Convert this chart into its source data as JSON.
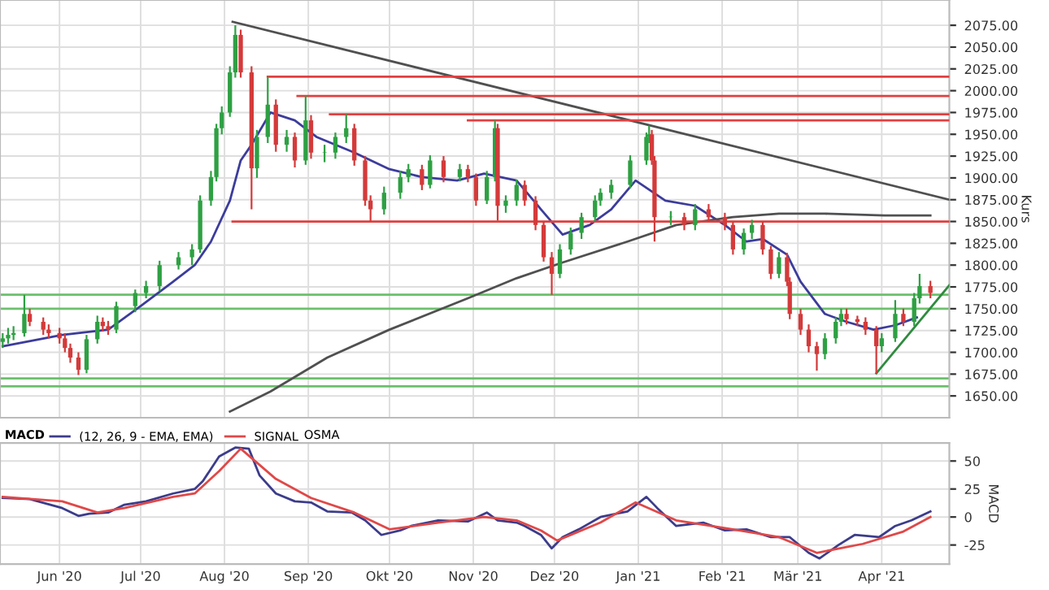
{
  "chart_data": [
    {
      "type": "candlestick",
      "ylabel": "Kurs",
      "grid": true,
      "legend": false,
      "tick_labels": "y",
      "xlim": [
        "2020-05-10",
        "2021-04-26"
      ],
      "ylim": [
        1625,
        2104
      ],
      "xticks": [
        {
          "value": "2020-06-01",
          "label": null
        },
        {
          "value": "2020-07-01",
          "label": null
        },
        {
          "value": "2020-08-01",
          "label": null
        },
        {
          "value": "2020-09-01",
          "label": null
        },
        {
          "value": "2020-10-01",
          "label": null
        },
        {
          "value": "2020-11-01",
          "label": null
        },
        {
          "value": "2020-12-01",
          "label": null
        },
        {
          "value": "2021-01-01",
          "label": null
        },
        {
          "value": "2021-02-01",
          "label": null
        },
        {
          "value": "2021-03-01",
          "label": null
        },
        {
          "value": "2021-04-01",
          "label": null
        }
      ],
      "yticks": [
        {
          "value": 1650,
          "label": "1650.00"
        },
        {
          "value": 1675,
          "label": "1675.00"
        },
        {
          "value": 1700,
          "label": "1700.00"
        },
        {
          "value": 1725,
          "label": "1725.00"
        },
        {
          "value": 1750,
          "label": "1750.00"
        },
        {
          "value": 1775,
          "label": "1775.00"
        },
        {
          "value": 1800,
          "label": "1800.00"
        },
        {
          "value": 1825,
          "label": "1825.00"
        },
        {
          "value": 1850,
          "label": "1850.00"
        },
        {
          "value": 1875,
          "label": "1875.00"
        },
        {
          "value": 1900,
          "label": "1900.00"
        },
        {
          "value": 1925,
          "label": "1925.00"
        },
        {
          "value": 1950,
          "label": "1950.00"
        },
        {
          "value": 1975,
          "label": "1975.00"
        },
        {
          "value": 2000,
          "label": "2000.00"
        },
        {
          "value": 2025,
          "label": "2025.00"
        },
        {
          "value": 2050,
          "label": "2050.00"
        },
        {
          "value": 2075,
          "label": "2075.00"
        }
      ],
      "x": [
        "2020-05-11",
        "2020-05-13",
        "2020-05-15",
        "2020-05-19",
        "2020-05-21",
        "2020-05-26",
        "2020-05-28",
        "2020-06-01",
        "2020-06-03",
        "2020-06-05",
        "2020-06-08",
        "2020-06-11",
        "2020-06-15",
        "2020-06-17",
        "2020-06-19",
        "2020-06-22",
        "2020-06-29",
        "2020-07-03",
        "2020-07-08",
        "2020-07-15",
        "2020-07-20",
        "2020-07-23",
        "2020-07-27",
        "2020-07-29",
        "2020-07-31",
        "2020-08-03",
        "2020-08-05",
        "2020-08-07",
        "2020-08-11",
        "2020-08-13",
        "2020-08-17",
        "2020-08-20",
        "2020-08-24",
        "2020-08-27",
        "2020-08-31",
        "2020-09-02",
        "2020-09-07",
        "2020-09-11",
        "2020-09-15",
        "2020-09-18",
        "2020-09-22",
        "2020-09-24",
        "2020-09-29",
        "2020-10-05",
        "2020-10-08",
        "2020-10-13",
        "2020-10-16",
        "2020-10-21",
        "2020-10-27",
        "2020-10-30",
        "2020-11-02",
        "2020-11-06",
        "2020-11-09",
        "2020-11-10",
        "2020-11-13",
        "2020-11-17",
        "2020-11-20",
        "2020-11-24",
        "2020-11-27",
        "2020-11-30",
        "2020-12-03",
        "2020-12-07",
        "2020-12-11",
        "2020-12-16",
        "2020-12-18",
        "2020-12-22",
        "2020-12-29",
        "2021-01-04",
        "2021-01-05",
        "2021-01-06",
        "2021-01-07",
        "2021-01-13",
        "2021-01-18",
        "2021-01-22",
        "2021-01-27",
        "2021-02-02",
        "2021-02-05",
        "2021-02-09",
        "2021-02-12",
        "2021-02-16",
        "2021-02-19",
        "2021-02-22",
        "2021-02-25",
        "2021-02-26",
        "2021-03-02",
        "2021-03-05",
        "2021-03-08",
        "2021-03-11",
        "2021-03-15",
        "2021-03-17",
        "2021-03-19",
        "2021-03-23",
        "2021-03-26",
        "2021-03-30",
        "2021-04-01",
        "2021-04-06",
        "2021-04-09",
        "2021-04-13",
        "2021-04-15",
        "2021-04-19"
      ],
      "ohlc": [
        [
          1712,
          1722,
          1705,
          1716
        ],
        [
          1716,
          1728,
          1710,
          1720
        ],
        [
          1720,
          1730,
          1714,
          1722
        ],
        [
          1722,
          1766,
          1718,
          1744
        ],
        [
          1744,
          1750,
          1730,
          1735
        ],
        [
          1735,
          1740,
          1720,
          1726
        ],
        [
          1726,
          1732,
          1716,
          1722
        ],
        [
          1722,
          1728,
          1710,
          1716
        ],
        [
          1716,
          1722,
          1700,
          1705
        ],
        [
          1705,
          1710,
          1688,
          1694
        ],
        [
          1694,
          1700,
          1674,
          1680
        ],
        [
          1680,
          1720,
          1676,
          1715
        ],
        [
          1715,
          1742,
          1710,
          1735
        ],
        [
          1735,
          1740,
          1724,
          1730
        ],
        [
          1730,
          1736,
          1720,
          1726
        ],
        [
          1726,
          1758,
          1722,
          1753
        ],
        [
          1753,
          1772,
          1746,
          1768
        ],
        [
          1768,
          1782,
          1762,
          1776
        ],
        [
          1776,
          1805,
          1770,
          1800
        ],
        [
          1800,
          1815,
          1795,
          1809
        ],
        [
          1809,
          1824,
          1800,
          1818
        ],
        [
          1818,
          1880,
          1814,
          1874
        ],
        [
          1874,
          1908,
          1868,
          1901
        ],
        [
          1901,
          1962,
          1896,
          1957
        ],
        [
          1957,
          1982,
          1950,
          1975
        ],
        [
          1975,
          2028,
          1970,
          2021
        ],
        [
          2021,
          2075,
          2015,
          2064
        ],
        [
          2064,
          2070,
          2015,
          2021
        ],
        [
          2021,
          2028,
          1864,
          1911
        ],
        [
          1911,
          1955,
          1900,
          1947
        ],
        [
          1947,
          2016,
          1940,
          1984
        ],
        [
          1984,
          1990,
          1930,
          1938
        ],
        [
          1938,
          1955,
          1930,
          1947
        ],
        [
          1947,
          1952,
          1912,
          1920
        ],
        [
          1920,
          1994,
          1915,
          1966
        ],
        [
          1966,
          1972,
          1922,
          1929
        ],
        [
          1929,
          1938,
          1918,
          1929
        ],
        [
          1929,
          1952,
          1922,
          1947
        ],
        [
          1947,
          1973,
          1940,
          1957
        ],
        [
          1957,
          1962,
          1914,
          1920
        ],
        [
          1920,
          1925,
          1868,
          1874
        ],
        [
          1874,
          1880,
          1850,
          1864
        ],
        [
          1864,
          1890,
          1858,
          1883
        ],
        [
          1883,
          1908,
          1876,
          1901
        ],
        [
          1901,
          1916,
          1895,
          1910
        ],
        [
          1910,
          1915,
          1886,
          1892
        ],
        [
          1892,
          1926,
          1888,
          1920
        ],
        [
          1920,
          1925,
          1895,
          1901
        ],
        [
          1901,
          1916,
          1896,
          1910
        ],
        [
          1910,
          1915,
          1895,
          1901
        ],
        [
          1901,
          1905,
          1868,
          1874
        ],
        [
          1874,
          1908,
          1870,
          1901
        ],
        [
          1901,
          1966,
          1896,
          1957
        ],
        [
          1957,
          1962,
          1851,
          1868
        ],
        [
          1868,
          1880,
          1860,
          1874
        ],
        [
          1874,
          1898,
          1868,
          1892
        ],
        [
          1892,
          1897,
          1868,
          1874
        ],
        [
          1874,
          1879,
          1840,
          1846
        ],
        [
          1846,
          1850,
          1804,
          1809
        ],
        [
          1809,
          1815,
          1766,
          1790
        ],
        [
          1790,
          1824,
          1785,
          1818
        ],
        [
          1818,
          1843,
          1812,
          1837
        ],
        [
          1837,
          1860,
          1830,
          1855
        ],
        [
          1855,
          1880,
          1850,
          1874
        ],
        [
          1874,
          1888,
          1868,
          1883
        ],
        [
          1883,
          1898,
          1876,
          1892
        ],
        [
          1892,
          1926,
          1888,
          1920
        ],
        [
          1920,
          1952,
          1915,
          1947
        ],
        [
          1947,
          1960,
          1940,
          1950
        ],
        [
          1950,
          1955,
          1915,
          1920
        ],
        [
          1920,
          1925,
          1827,
          1855
        ],
        [
          1855,
          1862,
          1846,
          1855
        ],
        [
          1855,
          1860,
          1840,
          1846
        ],
        [
          1846,
          1870,
          1840,
          1864
        ],
        [
          1864,
          1870,
          1850,
          1855
        ],
        [
          1855,
          1860,
          1840,
          1846
        ],
        [
          1846,
          1850,
          1812,
          1818
        ],
        [
          1818,
          1842,
          1812,
          1837
        ],
        [
          1837,
          1852,
          1830,
          1846
        ],
        [
          1846,
          1850,
          1812,
          1818
        ],
        [
          1818,
          1822,
          1784,
          1790
        ],
        [
          1790,
          1815,
          1785,
          1809
        ],
        [
          1809,
          1814,
          1776,
          1781
        ],
        [
          1781,
          1786,
          1738,
          1744
        ],
        [
          1744,
          1750,
          1720,
          1726
        ],
        [
          1726,
          1732,
          1700,
          1707
        ],
        [
          1707,
          1712,
          1679,
          1698
        ],
        [
          1698,
          1722,
          1692,
          1716
        ],
        [
          1716,
          1740,
          1710,
          1735
        ],
        [
          1735,
          1750,
          1730,
          1744
        ],
        [
          1744,
          1750,
          1732,
          1738
        ],
        [
          1738,
          1742,
          1730,
          1735
        ],
        [
          1735,
          1740,
          1720,
          1726
        ],
        [
          1726,
          1730,
          1676,
          1707
        ],
        [
          1707,
          1722,
          1700,
          1716
        ],
        [
          1716,
          1760,
          1712,
          1744
        ],
        [
          1744,
          1750,
          1730,
          1735
        ],
        [
          1735,
          1768,
          1730,
          1762
        ],
        [
          1762,
          1790,
          1756,
          1776
        ],
        [
          1776,
          1782,
          1762,
          1768
        ]
      ],
      "series": [
        {
          "type": "line",
          "color": "#3c3c9c",
          "x": [
            "2020-05-11",
            "2020-06-02",
            "2020-06-19",
            "2020-07-01",
            "2020-07-13",
            "2020-07-21",
            "2020-07-27",
            "2020-08-03",
            "2020-08-07",
            "2020-08-11",
            "2020-08-18",
            "2020-08-27",
            "2020-09-04",
            "2020-09-18",
            "2020-10-01",
            "2020-10-13",
            "2020-10-26",
            "2020-11-05",
            "2020-11-17",
            "2020-11-26",
            "2020-12-04",
            "2020-12-14",
            "2020-12-22",
            "2020-12-31",
            "2021-01-11",
            "2021-01-22",
            "2021-02-02",
            "2021-02-10",
            "2021-02-16",
            "2021-02-25",
            "2021-03-02",
            "2021-03-11",
            "2021-03-19",
            "2021-03-29",
            "2021-04-06",
            "2021-04-14"
          ],
          "values": [
            1707,
            1720,
            1726,
            1753,
            1781,
            1800,
            1827,
            1874,
            1920,
            1938,
            1975,
            1966,
            1947,
            1929,
            1910,
            1901,
            1897,
            1905,
            1897,
            1864,
            1835,
            1846,
            1864,
            1897,
            1874,
            1868,
            1846,
            1827,
            1830,
            1812,
            1781,
            1744,
            1735,
            1726,
            1731,
            1740
          ]
        },
        {
          "type": "line",
          "color": "#505050",
          "x": [
            "2020-08-03",
            "2020-08-18",
            "2020-09-08",
            "2020-10-01",
            "2020-10-30",
            "2020-11-17",
            "2020-12-04",
            "2020-12-28",
            "2021-01-15",
            "2021-02-05",
            "2021-02-22",
            "2021-03-11",
            "2021-04-02",
            "2021-04-19"
          ],
          "values": [
            1632,
            1655,
            1694,
            1726,
            1762,
            1785,
            1803,
            1827,
            1846,
            1855,
            1859,
            1859,
            1857,
            1857
          ]
        },
        {
          "type": "line",
          "color": "#505050",
          "x": [
            "2020-08-04",
            "2021-04-26"
          ],
          "values": [
            2079,
            1875
          ]
        },
        {
          "type": "line",
          "color": "#2e8b3e",
          "x": [
            "2021-03-30",
            "2021-04-26"
          ],
          "values": [
            1676,
            1777
          ]
        },
        {
          "type": "line",
          "color": "#e04040",
          "x": [
            "2020-08-04",
            "2021-04-26"
          ],
          "values": [
            1850,
            1850
          ]
        },
        {
          "type": "line",
          "color": "#e04040",
          "x": [
            "2020-08-17",
            "2021-04-26"
          ],
          "values": [
            2016,
            2016
          ]
        },
        {
          "type": "line",
          "color": "#e04040",
          "x": [
            "2020-08-28",
            "2021-04-26"
          ],
          "values": [
            1994,
            1994
          ]
        },
        {
          "type": "line",
          "color": "#e04040",
          "x": [
            "2020-09-09",
            "2021-04-26"
          ],
          "values": [
            1973,
            1973
          ]
        },
        {
          "type": "line",
          "color": "#e04040",
          "x": [
            "2020-10-30",
            "2021-04-26"
          ],
          "values": [
            1966,
            1966
          ]
        }
      ],
      "ref_lines": [
        {
          "axis": "y",
          "value": 1766,
          "label": null,
          "color": "#6cbf6c"
        },
        {
          "axis": "y",
          "value": 1750,
          "label": null,
          "color": "#6cbf6c"
        },
        {
          "axis": "y",
          "value": 1670,
          "label": null,
          "color": "#6cbf6c"
        },
        {
          "axis": "y",
          "value": 1661,
          "label": null,
          "color": "#6cbf6c"
        }
      ]
    },
    {
      "type": "line",
      "ylabel": "MACD",
      "grid": true,
      "legend": "top left",
      "legend_title": "MACD",
      "annotations": [
        "OSMA"
      ],
      "xlim": [
        "2020-05-10",
        "2021-04-26"
      ],
      "ylim": [
        -42,
        66
      ],
      "yticks": [
        -25,
        0,
        25,
        50
      ],
      "xticks": [
        {
          "value": "2020-06-01",
          "label": "Jun '20"
        },
        {
          "value": "2020-07-01",
          "label": "Jul '20"
        },
        {
          "value": "2020-08-01",
          "label": "Aug '20"
        },
        {
          "value": "2020-09-01",
          "label": "Sep '20"
        },
        {
          "value": "2020-10-01",
          "label": "Okt '20"
        },
        {
          "value": "2020-11-01",
          "label": "Nov '20"
        },
        {
          "value": "2020-12-01",
          "label": "Dez '20"
        },
        {
          "value": "2021-01-01",
          "label": "Jan '21"
        },
        {
          "value": "2021-02-01",
          "label": "Feb '21"
        },
        {
          "value": "2021-03-01",
          "label": "Mär '21"
        },
        {
          "value": "2021-04-01",
          "label": "Apr '21"
        }
      ],
      "series": [
        {
          "name": "(12, 26, 9 - EMA, EMA)",
          "color": "#3c3c8c",
          "x": [
            "2020-05-11",
            "2020-05-21",
            "2020-06-02",
            "2020-06-08",
            "2020-06-12",
            "2020-06-19",
            "2020-06-25",
            "2020-07-03",
            "2020-07-13",
            "2020-07-21",
            "2020-07-24",
            "2020-07-30",
            "2020-08-05",
            "2020-08-10",
            "2020-08-14",
            "2020-08-20",
            "2020-08-27",
            "2020-09-02",
            "2020-09-08",
            "2020-09-17",
            "2020-09-22",
            "2020-09-28",
            "2020-10-05",
            "2020-10-09",
            "2020-10-19",
            "2020-10-30",
            "2020-11-06",
            "2020-11-10",
            "2020-11-17",
            "2020-11-20",
            "2020-11-26",
            "2020-11-30",
            "2020-12-04",
            "2020-12-10",
            "2020-12-18",
            "2020-12-28",
            "2021-01-04",
            "2021-01-08",
            "2021-01-15",
            "2021-01-25",
            "2021-02-02",
            "2021-02-10",
            "2021-02-19",
            "2021-02-26",
            "2021-03-05",
            "2021-03-09",
            "2021-03-16",
            "2021-03-22",
            "2021-03-31",
            "2021-04-06",
            "2021-04-12",
            "2021-04-19"
          ],
          "values": [
            17,
            16,
            8,
            1,
            3,
            4,
            11,
            14,
            21,
            25,
            32,
            54,
            62,
            61,
            37,
            21,
            14,
            13,
            5,
            4,
            -3,
            -16,
            -12,
            -8,
            -3,
            -4,
            4,
            -3,
            -5,
            -8,
            -16,
            -28,
            -18,
            -11,
            0,
            5,
            18,
            8,
            -8,
            -5,
            -12,
            -11,
            -18,
            -18,
            -32,
            -37,
            -25,
            -16,
            -18,
            -8,
            -3,
            5
          ]
        },
        {
          "name": "SIGNAL",
          "color": "#e04848",
          "x": [
            "2020-05-11",
            "2020-06-02",
            "2020-06-15",
            "2020-06-25",
            "2020-07-13",
            "2020-07-21",
            "2020-07-30",
            "2020-08-07",
            "2020-08-20",
            "2020-09-02",
            "2020-09-18",
            "2020-10-01",
            "2020-10-19",
            "2020-11-05",
            "2020-11-17",
            "2020-11-26",
            "2020-12-02",
            "2020-12-18",
            "2020-12-31",
            "2021-01-15",
            "2021-02-05",
            "2021-02-22",
            "2021-03-08",
            "2021-03-25",
            "2021-04-09",
            "2021-04-19"
          ],
          "values": [
            18,
            14,
            4,
            8,
            18,
            21,
            41,
            61,
            34,
            17,
            4,
            -11,
            -5,
            0,
            -3,
            -12,
            -21,
            -5,
            13,
            -3,
            -11,
            -18,
            -32,
            -24,
            -13,
            0
          ]
        }
      ]
    }
  ]
}
